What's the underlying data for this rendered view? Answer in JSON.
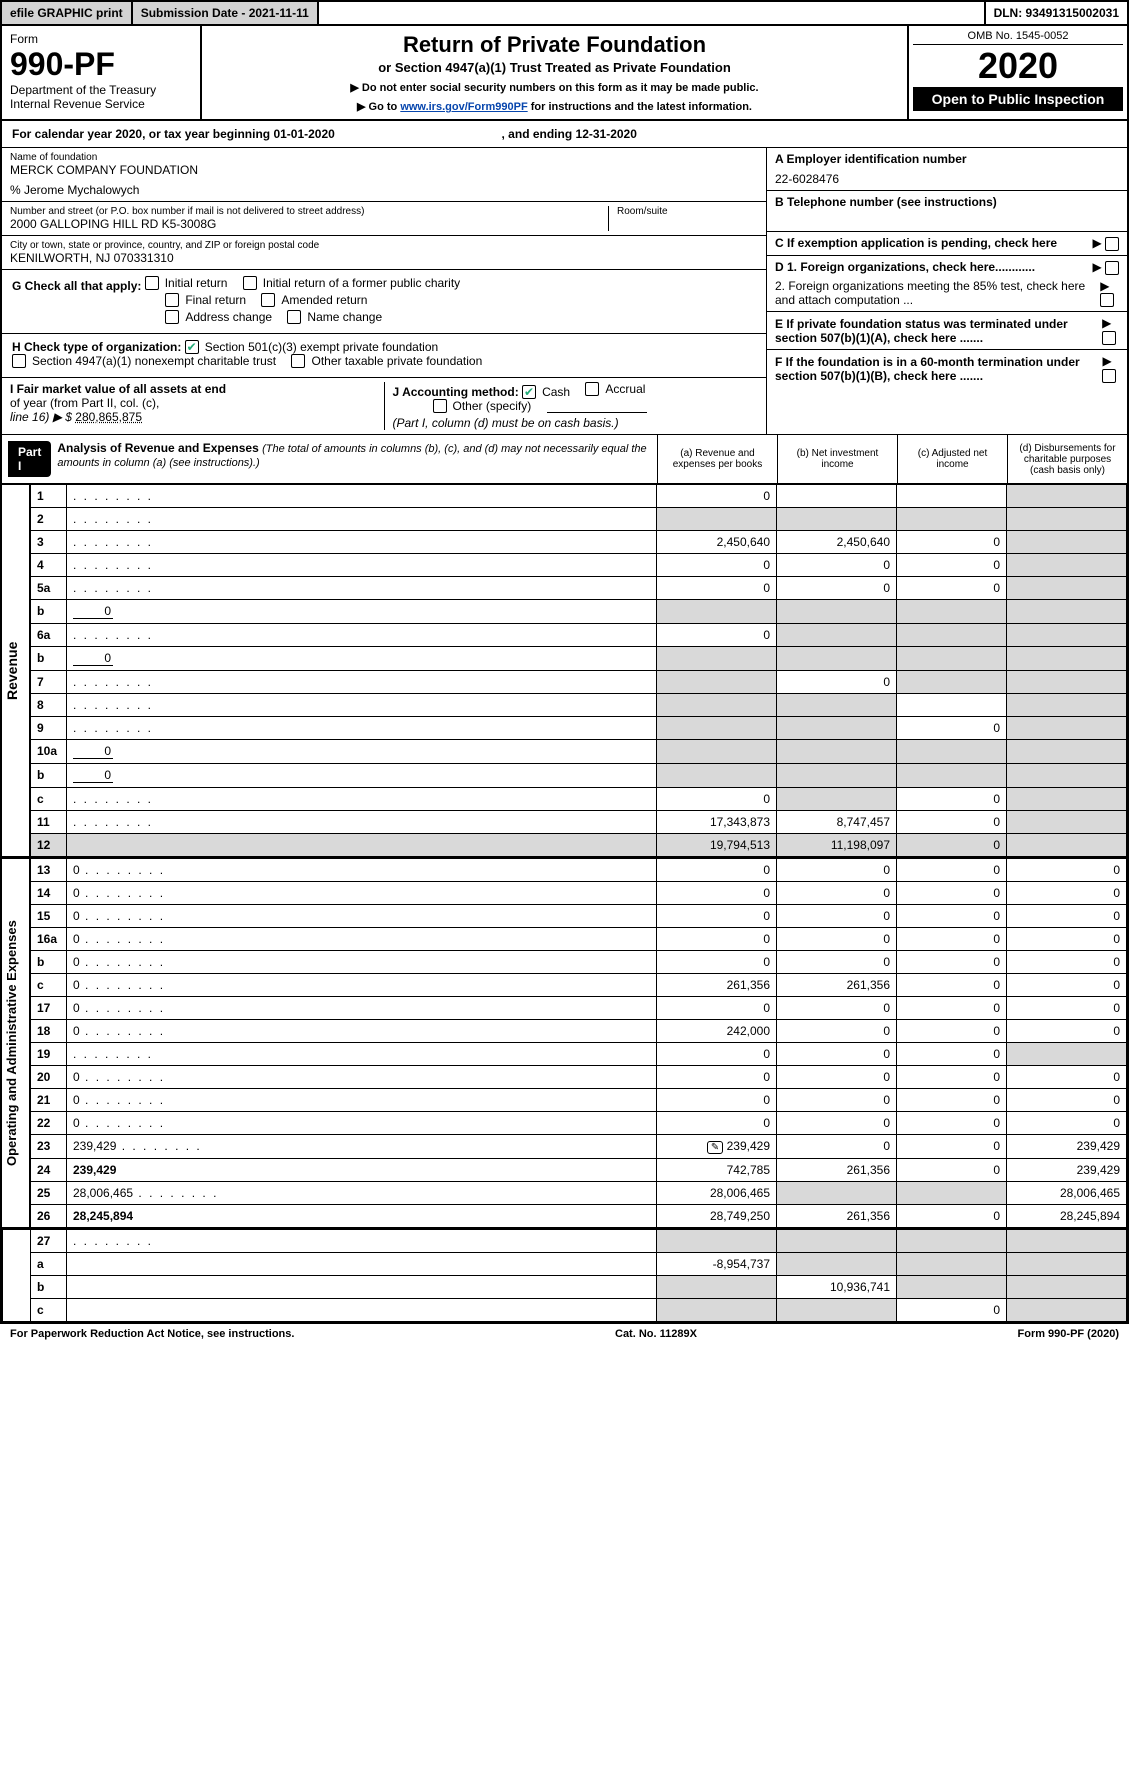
{
  "topbar": {
    "efile": "efile GRAPHIC print",
    "subdate_label": "Submission Date - 2021-11-11",
    "dln": "DLN: 93491315002031"
  },
  "header": {
    "form_word": "Form",
    "form_num": "990-PF",
    "dept": "Department of the Treasury",
    "irs": "Internal Revenue Service",
    "title": "Return of Private Foundation",
    "subtitle": "or Section 4947(a)(1) Trust Treated as Private Foundation",
    "note1": "▶ Do not enter social security numbers on this form as it may be made public.",
    "note2_pre": "▶ Go to ",
    "note2_link": "www.irs.gov/Form990PF",
    "note2_post": " for instructions and the latest information.",
    "omb": "OMB No. 1545-0052",
    "year": "2020",
    "pub": "Open to Public Inspection"
  },
  "cal": {
    "line": "For calendar year 2020, or tax year beginning 01-01-2020",
    "ending": ", and ending 12-31-2020"
  },
  "ident": {
    "name_label": "Name of foundation",
    "name": "MERCK COMPANY FOUNDATION",
    "careof": "% Jerome Mychalowych",
    "street_label": "Number and street (or P.O. box number if mail is not delivered to street address)",
    "street": "2000 GALLOPING HILL RD K5-3008G",
    "room_label": "Room/suite",
    "city_label": "City or town, state or province, country, and ZIP or foreign postal code",
    "city": "KENILWORTH, NJ  070331310",
    "A_label": "A Employer identification number",
    "A_val": "22-6028476",
    "B_label": "B Telephone number (see instructions)",
    "C_label": "C If exemption application is pending, check here",
    "D1": "D 1. Foreign organizations, check here............",
    "D2": "2. Foreign organizations meeting the 85% test, check here and attach computation ...",
    "E": "E  If private foundation status was terminated under section 507(b)(1)(A), check here .......",
    "F": "F  If the foundation is in a 60-month termination under section 507(b)(1)(B), check here .......",
    "G_label": "G Check all that apply:",
    "G_opts": [
      "Initial return",
      "Initial return of a former public charity",
      "Final return",
      "Amended return",
      "Address change",
      "Name change"
    ],
    "H_label": "H Check type of organization:",
    "H_opts": [
      "Section 501(c)(3) exempt private foundation",
      "Section 4947(a)(1) nonexempt charitable trust",
      "Other taxable private foundation"
    ],
    "H_checked": 0,
    "I_label1": "I Fair market value of all assets at end",
    "I_label2": "of year (from Part II, col. (c),",
    "I_label3": "line 16) ▶ $",
    "I_val": "280,865,875",
    "J_label": "J Accounting method:",
    "J_opts": [
      "Cash",
      "Accrual"
    ],
    "J_checked": 0,
    "J_other": "Other (specify)",
    "J_note": "(Part I, column (d) must be on cash basis.)"
  },
  "part1": {
    "label": "Part I",
    "title": "Analysis of Revenue and Expenses",
    "note": "(The total of amounts in columns (b), (c), and (d) may not necessarily equal the amounts in column (a) (see instructions).)",
    "col_a": "(a)   Revenue and expenses per books",
    "col_b": "(b)  Net investment income",
    "col_c": "(c)  Adjusted net income",
    "col_d": "(d)  Disbursements for charitable purposes (cash basis only)"
  },
  "sidelabels": {
    "rev": "Revenue",
    "exp": "Operating and Administrative Expenses"
  },
  "rows": [
    {
      "n": "1",
      "d": "",
      "a": "0",
      "b": "",
      "c": "",
      "shade": [
        "d"
      ]
    },
    {
      "n": "2",
      "d": "",
      "a": "",
      "b": "",
      "c": "",
      "shade": [
        "a",
        "b",
        "c",
        "d"
      ]
    },
    {
      "n": "3",
      "d": "",
      "a": "2,450,640",
      "b": "2,450,640",
      "c": "0",
      "shade": [
        "d"
      ]
    },
    {
      "n": "4",
      "d": "",
      "a": "0",
      "b": "0",
      "c": "0",
      "shade": [
        "d"
      ]
    },
    {
      "n": "5a",
      "d": "",
      "a": "0",
      "b": "0",
      "c": "0",
      "shade": [
        "d"
      ]
    },
    {
      "n": "b",
      "d": "",
      "inline": "0",
      "a": "",
      "b": "",
      "c": "",
      "shade": [
        "a",
        "b",
        "c",
        "d"
      ]
    },
    {
      "n": "6a",
      "d": "",
      "a": "0",
      "b": "",
      "c": "",
      "shade": [
        "b",
        "c",
        "d"
      ]
    },
    {
      "n": "b",
      "d": "",
      "inline": "0",
      "a": "",
      "b": "",
      "c": "",
      "shade": [
        "a",
        "b",
        "c",
        "d"
      ]
    },
    {
      "n": "7",
      "d": "",
      "a": "",
      "b": "0",
      "c": "",
      "shade": [
        "a",
        "c",
        "d"
      ]
    },
    {
      "n": "8",
      "d": "",
      "a": "",
      "b": "",
      "c": "",
      "shade": [
        "a",
        "b",
        "d"
      ]
    },
    {
      "n": "9",
      "d": "",
      "a": "",
      "b": "",
      "c": "0",
      "shade": [
        "a",
        "b",
        "d"
      ]
    },
    {
      "n": "10a",
      "d": "",
      "inline": "0",
      "a": "",
      "b": "",
      "c": "",
      "shade": [
        "a",
        "b",
        "c",
        "d"
      ]
    },
    {
      "n": "b",
      "d": "",
      "inline": "0",
      "a": "",
      "b": "",
      "c": "",
      "shade": [
        "a",
        "b",
        "c",
        "d"
      ]
    },
    {
      "n": "c",
      "d": "",
      "a": "0",
      "b": "",
      "c": "0",
      "shade": [
        "b",
        "d"
      ]
    },
    {
      "n": "11",
      "d": "",
      "a": "17,343,873",
      "b": "8,747,457",
      "c": "0",
      "shade": [
        "d"
      ]
    },
    {
      "n": "12",
      "d": "",
      "bold": true,
      "a": "19,794,513",
      "b": "11,198,097",
      "c": "0",
      "shade": [
        "d"
      ],
      "rowshade": true
    }
  ],
  "exp_rows": [
    {
      "n": "13",
      "d": "0",
      "a": "0",
      "b": "0",
      "c": "0"
    },
    {
      "n": "14",
      "d": "0",
      "a": "0",
      "b": "0",
      "c": "0"
    },
    {
      "n": "15",
      "d": "0",
      "a": "0",
      "b": "0",
      "c": "0"
    },
    {
      "n": "16a",
      "d": "0",
      "a": "0",
      "b": "0",
      "c": "0"
    },
    {
      "n": "b",
      "d": "0",
      "a": "0",
      "b": "0",
      "c": "0"
    },
    {
      "n": "c",
      "d": "0",
      "a": "261,356",
      "b": "261,356",
      "c": "0"
    },
    {
      "n": "17",
      "d": "0",
      "a": "0",
      "b": "0",
      "c": "0"
    },
    {
      "n": "18",
      "d": "0",
      "a": "242,000",
      "b": "0",
      "c": "0"
    },
    {
      "n": "19",
      "d": "",
      "a": "0",
      "b": "0",
      "c": "0",
      "shade": [
        "d"
      ]
    },
    {
      "n": "20",
      "d": "0",
      "a": "0",
      "b": "0",
      "c": "0"
    },
    {
      "n": "21",
      "d": "0",
      "a": "0",
      "b": "0",
      "c": "0"
    },
    {
      "n": "22",
      "d": "0",
      "a": "0",
      "b": "0",
      "c": "0"
    },
    {
      "n": "23",
      "d": "239,429",
      "icon": true,
      "a": "239,429",
      "b": "0",
      "c": "0"
    },
    {
      "n": "24",
      "d": "239,429",
      "bold": true,
      "a": "742,785",
      "b": "261,356",
      "c": "0"
    },
    {
      "n": "25",
      "d": "28,006,465",
      "a": "28,006,465",
      "b": "",
      "c": "",
      "shade": [
        "b",
        "c"
      ]
    },
    {
      "n": "26",
      "d": "28,245,894",
      "bold": true,
      "a": "28,749,250",
      "b": "261,356",
      "c": "0"
    }
  ],
  "rows27": [
    {
      "n": "27",
      "d": "",
      "a": "",
      "b": "",
      "c": "",
      "shade": [
        "a",
        "b",
        "c",
        "d"
      ]
    },
    {
      "n": "a",
      "d": "",
      "bold": true,
      "a": "-8,954,737",
      "b": "",
      "c": "",
      "shade": [
        "b",
        "c",
        "d"
      ]
    },
    {
      "n": "b",
      "d": "",
      "bold": true,
      "a": "",
      "b": "10,936,741",
      "c": "",
      "shade": [
        "a",
        "c",
        "d"
      ]
    },
    {
      "n": "c",
      "d": "",
      "bold": true,
      "a": "",
      "b": "",
      "c": "0",
      "shade": [
        "a",
        "b",
        "d"
      ]
    }
  ],
  "footer": {
    "left": "For Paperwork Reduction Act Notice, see instructions.",
    "mid": "Cat. No. 11289X",
    "right": "Form 990-PF (2020)"
  },
  "colors": {
    "shade": "#d9d9d9",
    "link": "#0645ad",
    "check": "#22aa55"
  }
}
